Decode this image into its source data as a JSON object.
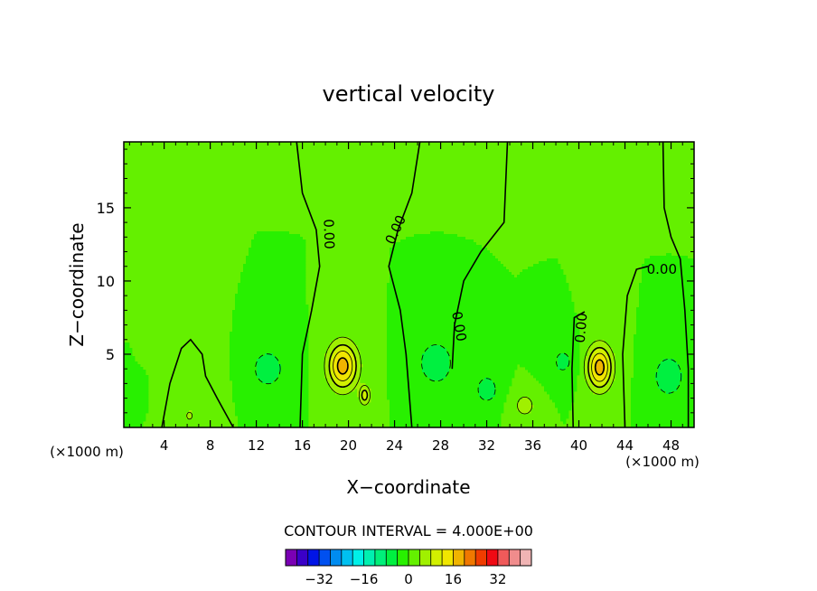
{
  "chart_data": {
    "type": "heatmap",
    "title": "vertical velocity",
    "xlabel": "X−coordinate",
    "ylabel": "Z−coordinate",
    "x_unit_left": "(×1000 m)",
    "x_unit_right": "(×1000 m)",
    "xlim": [
      0.5,
      50
    ],
    "ylim": [
      0,
      19.5
    ],
    "x_ticks": [
      4,
      8,
      12,
      16,
      20,
      24,
      28,
      32,
      36,
      40,
      44,
      48
    ],
    "y_ticks": [
      5,
      10,
      15
    ],
    "contour_interval_text": "CONTOUR INTERVAL = 4.000E+00",
    "contour_labels": [
      {
        "text": "0.00",
        "x": 18.3,
        "y": 13.2,
        "rotate": 88
      },
      {
        "text": "0.00",
        "x": 24.1,
        "y": 13.5,
        "rotate": -65
      },
      {
        "text": "0.00",
        "x": 29.6,
        "y": 6.9,
        "rotate": 80
      },
      {
        "text": "0.00",
        "x": 40.2,
        "y": 6.8,
        "rotate": -85
      },
      {
        "text": "0.00",
        "x": 47.2,
        "y": 10.8,
        "rotate": 0
      }
    ],
    "field_features": [
      {
        "x": 19.5,
        "y": 4.2,
        "value": 18,
        "sx": 1.3,
        "sy": 1.6
      },
      {
        "x": 41.8,
        "y": 4.1,
        "value": 18,
        "sx": 1.1,
        "sy": 1.5
      },
      {
        "x": 21.4,
        "y": 2.2,
        "value": 10,
        "sx": 0.5,
        "sy": 0.7
      },
      {
        "x": 13.0,
        "y": 4.0,
        "value": -6,
        "sx": 1.7,
        "sy": 1.6
      },
      {
        "x": 27.6,
        "y": 4.4,
        "value": -8,
        "sx": 1.5,
        "sy": 1.5
      },
      {
        "x": 32.0,
        "y": 2.6,
        "value": -7,
        "sx": 1.0,
        "sy": 1.0
      },
      {
        "x": 38.6,
        "y": 4.5,
        "value": -5,
        "sx": 1.2,
        "sy": 1.2
      },
      {
        "x": 47.8,
        "y": 3.5,
        "value": -8,
        "sx": 1.3,
        "sy": 1.4
      },
      {
        "x": 1.0,
        "y": 2.5,
        "value": -4,
        "sx": 0.6,
        "sy": 0.8
      },
      {
        "x": 35.3,
        "y": 1.5,
        "value": 6,
        "sx": 1.0,
        "sy": 0.9
      },
      {
        "x": 7.0,
        "y": 3.5,
        "value": 3,
        "sx": 1.6,
        "sy": 2.0
      },
      {
        "x": 2.5,
        "y": 5.0,
        "value": 3,
        "sx": 0.4,
        "sy": 0.4
      },
      {
        "x": 6.2,
        "y": 0.8,
        "value": 5,
        "sx": 0.5,
        "sy": 0.5
      }
    ],
    "colorbar": {
      "colors": [
        "#7a00b4",
        "#3a00c8",
        "#0014e6",
        "#0050f0",
        "#008cf0",
        "#00c0f0",
        "#00f0e8",
        "#00f0b0",
        "#00f07a",
        "#00f040",
        "#28f000",
        "#64f000",
        "#a0f000",
        "#d2f000",
        "#f0e600",
        "#f0b400",
        "#f07800",
        "#f03c00",
        "#f00a14",
        "#f05a5a",
        "#f08c8c",
        "#f0b4b4"
      ],
      "value_min": -44,
      "value_step": 4,
      "tick_labels": [
        "−32",
        "−16",
        "0",
        "16",
        "32"
      ],
      "tick_values": [
        -32,
        -16,
        0,
        16,
        32
      ]
    }
  }
}
